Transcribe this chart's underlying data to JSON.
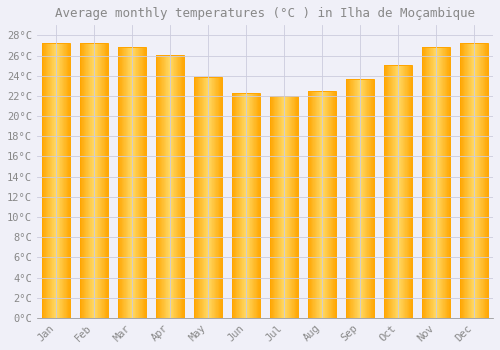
{
  "months": [
    "Jan",
    "Feb",
    "Mar",
    "Apr",
    "May",
    "Jun",
    "Jul",
    "Aug",
    "Sep",
    "Oct",
    "Nov",
    "Dec"
  ],
  "values": [
    27.2,
    27.2,
    26.8,
    26.1,
    23.9,
    22.3,
    22.0,
    22.5,
    23.7,
    25.1,
    26.8,
    27.2
  ],
  "bar_color_center": "#FFD966",
  "bar_color_edge": "#FFA500",
  "background_color": "#F0F0F8",
  "grid_color": "#CCCCDD",
  "title": "Average monthly temperatures (°C ) in Ilha de Moçambique",
  "title_fontsize": 9,
  "tick_label_color": "#888888",
  "tick_fontsize": 7.5,
  "ylim": [
    0,
    29
  ],
  "yticks": [
    0,
    2,
    4,
    6,
    8,
    10,
    12,
    14,
    16,
    18,
    20,
    22,
    24,
    26,
    28
  ]
}
